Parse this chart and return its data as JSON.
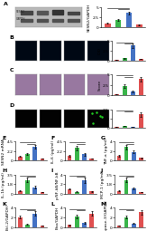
{
  "group_colors": [
    "#e05050",
    "#3ab54a",
    "#4472c4",
    "#e05050"
  ],
  "chart_A_bar": {
    "ylabel": "SESN2/GAPDH",
    "values": [
      1.0,
      1.8,
      3.5,
      0.6
    ],
    "errors": [
      0.15,
      0.3,
      0.4,
      0.1
    ],
    "ylim": [
      0,
      5
    ]
  },
  "chart_B_bar": {
    "ylabel": "IOD",
    "values": [
      0.2,
      0.5,
      3.8,
      0.4
    ],
    "errors": [
      0.05,
      0.1,
      0.5,
      0.08
    ],
    "ylim": [
      0,
      5
    ]
  },
  "chart_C_bar": {
    "ylabel": "Score",
    "values": [
      0.3,
      2.2,
      1.0,
      3.8
    ],
    "errors": [
      0.05,
      0.35,
      0.2,
      0.5
    ],
    "ylim": [
      0,
      5
    ]
  },
  "chart_D_bar": {
    "ylabel": "IOD",
    "values": [
      0.1,
      0.3,
      0.15,
      2.5
    ],
    "errors": [
      0.02,
      0.06,
      0.03,
      0.4
    ],
    "ylim": [
      0,
      3.5
    ]
  },
  "chart_E": {
    "ylabel": "SESN2 mRNA",
    "values": [
      1.0,
      1.6,
      3.2,
      0.5
    ],
    "errors": [
      0.15,
      0.25,
      0.4,
      0.08
    ],
    "ylim": [
      0,
      4.5
    ]
  },
  "chart_F": {
    "ylabel": "IL-6 (pg/ml)",
    "values": [
      1.2,
      3.0,
      1.5,
      0.5
    ],
    "errors": [
      0.2,
      0.5,
      0.3,
      0.1
    ],
    "ylim": [
      0,
      4.5
    ]
  },
  "chart_G": {
    "ylabel": "TNF-a (pg/ml)",
    "values": [
      1.0,
      2.8,
      1.8,
      0.6
    ],
    "errors": [
      0.15,
      0.4,
      0.3,
      0.1
    ],
    "ylim": [
      0,
      4.0
    ]
  },
  "chart_H": {
    "ylabel": "IL-1b (pg/ml)",
    "values": [
      0.5,
      2.5,
      1.2,
      0.3
    ],
    "errors": [
      0.1,
      0.4,
      0.2,
      0.06
    ],
    "ylim": [
      0,
      3.5
    ]
  },
  "chart_I": {
    "ylabel": "p-NF-kB/NF-kB",
    "values": [
      1.0,
      0.4,
      2.8,
      0.5
    ],
    "errors": [
      0.15,
      0.08,
      0.5,
      0.09
    ],
    "ylim": [
      0,
      4.0
    ]
  },
  "chart_J": {
    "ylabel": "MCP-1 (pg/ml)",
    "values": [
      0.5,
      2.5,
      1.0,
      0.3
    ],
    "errors": [
      0.08,
      0.4,
      0.2,
      0.05
    ],
    "ylim": [
      0,
      3.5
    ]
  },
  "chart_K": {
    "ylabel": "Bcl-2/GAPDH",
    "values": [
      2.0,
      0.5,
      2.8,
      0.3
    ],
    "errors": [
      0.3,
      0.1,
      0.4,
      0.06
    ],
    "ylim": [
      0,
      4.0
    ]
  },
  "chart_L": {
    "ylabel": "Bax/GAPDH",
    "values": [
      0.4,
      2.2,
      0.8,
      2.8
    ],
    "errors": [
      0.07,
      0.35,
      0.15,
      0.45
    ],
    "ylim": [
      0,
      4.0
    ]
  },
  "chart_M": {
    "ylabel": "Caspase-3/GAPDH",
    "values": [
      0.3,
      2.0,
      0.7,
      3.0
    ],
    "errors": [
      0.05,
      0.3,
      0.12,
      0.5
    ],
    "ylim": [
      0,
      4.0
    ]
  },
  "bg_color": "#ffffff",
  "micro_B_color": "#000814",
  "micro_C_color": "#b090b0",
  "micro_D_color": "#020202",
  "wb_bg": "#b8b8b8"
}
